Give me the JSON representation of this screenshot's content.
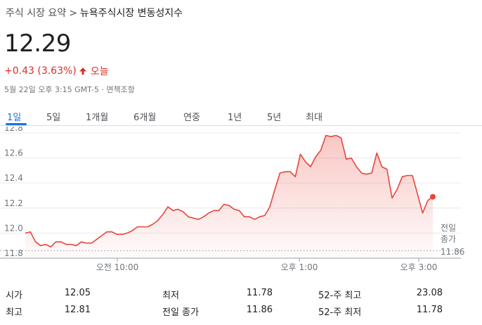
{
  "breadcrumb": {
    "parent": "주식 시장 요약",
    "separator": ">",
    "current": "뉴욕주식시장 변동성지수"
  },
  "quote": {
    "price": "12.29",
    "change": "+0.43 (3.63%)",
    "period": "오늘",
    "timestamp": "5월 22일 오후 3:15 GMT-5 · 면책조항"
  },
  "tabs": [
    "1일",
    "5일",
    "1개월",
    "6개월",
    "연중",
    "1년",
    "5년",
    "최대"
  ],
  "colors": {
    "accent": "#1a73e8",
    "down_red": "#d93025",
    "line": "#e8453c"
  },
  "chart_data": {
    "type": "area",
    "x_labels": [
      "오전 10:00",
      "오후 1:00",
      "오후 3:00"
    ],
    "ylim": [
      11.8,
      12.85
    ],
    "y_ticks": [
      "12.8",
      "12.6",
      "12.4",
      "12.2",
      "12.0",
      "11.8"
    ],
    "previous_close": {
      "label_line1": "전일",
      "label_line2": "종가",
      "value": "11.86"
    },
    "grid": true,
    "series": [
      {
        "values": [
          12.0,
          12.01,
          11.93,
          11.9,
          11.91,
          11.89,
          11.93,
          11.93,
          11.91,
          11.91,
          11.9,
          11.93,
          11.92,
          11.92,
          11.95,
          11.98,
          12.01,
          12.01,
          11.99,
          11.99,
          12.0,
          12.02,
          12.05,
          12.05,
          12.05,
          12.07,
          12.1,
          12.15,
          12.21,
          12.18,
          12.19,
          12.17,
          12.13,
          12.12,
          12.11,
          12.13,
          12.16,
          12.18,
          12.18,
          12.23,
          12.22,
          12.19,
          12.18,
          12.13,
          12.13,
          12.11,
          12.13,
          12.14,
          12.21,
          12.35,
          12.48,
          12.49,
          12.49,
          12.45,
          12.63,
          12.57,
          12.53,
          12.61,
          12.66,
          12.78,
          12.77,
          12.78,
          12.76,
          12.59,
          12.6,
          12.53,
          12.48,
          12.47,
          12.48,
          12.64,
          12.53,
          12.51,
          12.28,
          12.35,
          12.45,
          12.46,
          12.46,
          12.31,
          12.16,
          12.26,
          12.29
        ]
      }
    ]
  },
  "stats": {
    "rows": [
      [
        {
          "label": "시가",
          "value": "12.05"
        },
        {
          "label": "최저",
          "value": "11.78"
        },
        {
          "label": "52-주 최고",
          "value": "23.08"
        }
      ],
      [
        {
          "label": "최고",
          "value": "12.81"
        },
        {
          "label": "전일 종가",
          "value": "11.86"
        },
        {
          "label": "52-주 최저",
          "value": "11.78"
        }
      ]
    ]
  }
}
